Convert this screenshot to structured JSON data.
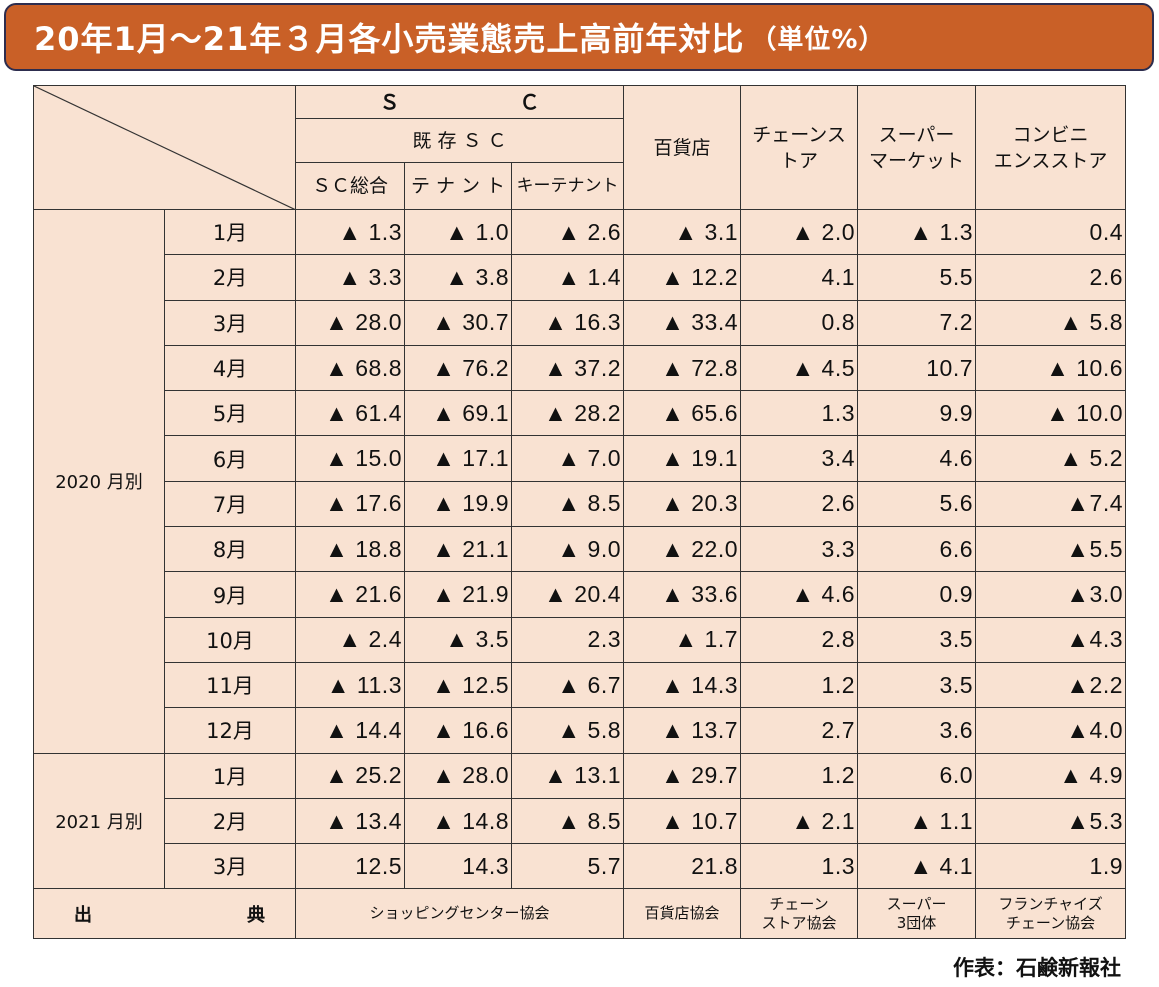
{
  "title": "20年1月～21年３月各小売業態売上高前年対比",
  "title_unit": "（単位%）",
  "header": {
    "sc": "Ｓ　　　　　　Ｃ",
    "existing_sc": "既 存 Ｓ Ｃ",
    "sc_total": "ＳＣ総合",
    "tenant": "テ ナ ン ト",
    "key_tenant": "キーテナント",
    "department_store": "百貨店",
    "chain_store": [
      "チェーンス",
      "トア"
    ],
    "supermarket": [
      "スーパー",
      "マーケット"
    ],
    "convenience": [
      "コンビニ",
      "エンスストア"
    ]
  },
  "groups": [
    {
      "label": "2020 月別",
      "rows": [
        {
          "month": "1月",
          "values": [
            "▲ 1.3",
            "▲ 1.0",
            "▲ 2.6",
            "▲ 3.1",
            "▲ 2.0",
            "▲ 1.3",
            "0.4"
          ]
        },
        {
          "month": "2月",
          "values": [
            "▲ 3.3",
            "▲ 3.8",
            "▲ 1.4",
            "▲ 12.2",
            "4.1",
            "5.5",
            "2.6"
          ]
        },
        {
          "month": "3月",
          "values": [
            "▲ 28.0",
            "▲ 30.7",
            "▲ 16.3",
            "▲ 33.4",
            "0.8",
            "7.2",
            "▲ 5.8"
          ]
        },
        {
          "month": "4月",
          "values": [
            "▲ 68.8",
            "▲ 76.2",
            "▲ 37.2",
            "▲ 72.8",
            "▲ 4.5",
            "10.7",
            "▲ 10.6"
          ]
        },
        {
          "month": "5月",
          "values": [
            "▲ 61.4",
            "▲ 69.1",
            "▲ 28.2",
            "▲ 65.6",
            "1.3",
            "9.9",
            "▲ 10.0"
          ]
        },
        {
          "month": "6月",
          "values": [
            "▲ 15.0",
            "▲ 17.1",
            "▲ 7.0",
            "▲ 19.1",
            "3.4",
            "4.6",
            "▲ 5.2"
          ]
        },
        {
          "month": "7月",
          "values": [
            "▲ 17.6",
            "▲ 19.9",
            "▲ 8.5",
            "▲ 20.3",
            "2.6",
            "5.6",
            "▲7.4"
          ]
        },
        {
          "month": "8月",
          "values": [
            "▲ 18.8",
            "▲ 21.1",
            "▲ 9.0",
            "▲ 22.0",
            "3.3",
            "6.6",
            "▲5.5"
          ]
        },
        {
          "month": "9月",
          "values": [
            "▲ 21.6",
            "▲ 21.9",
            "▲ 20.4",
            "▲ 33.6",
            "▲ 4.6",
            "0.9",
            "▲3.0"
          ]
        },
        {
          "month": "10月",
          "values": [
            "▲ 2.4",
            "▲ 3.5",
            "2.3",
            "▲ 1.7",
            "2.8",
            "3.5",
            "▲4.3"
          ]
        },
        {
          "month": "11月",
          "values": [
            "▲ 11.3",
            "▲ 12.5",
            "▲ 6.7",
            "▲ 14.3",
            "1.2",
            "3.5",
            "▲2.2"
          ]
        },
        {
          "month": "12月",
          "values": [
            "▲ 14.4",
            "▲ 16.6",
            "▲ 5.8",
            "▲ 13.7",
            "2.7",
            "3.6",
            "▲4.0"
          ]
        }
      ]
    },
    {
      "label": "2021 月別",
      "rows": [
        {
          "month": "1月",
          "values": [
            "▲ 25.2",
            "▲ 28.0",
            "▲ 13.1",
            "▲ 29.7",
            "1.2",
            "6.0",
            "▲ 4.9"
          ]
        },
        {
          "month": "2月",
          "values": [
            "▲ 13.4",
            "▲ 14.8",
            "▲ 8.5",
            "▲ 10.7",
            "▲ 2.1",
            "▲ 1.1",
            "▲5.3"
          ]
        },
        {
          "month": "3月",
          "values": [
            "12.5",
            "14.3",
            "5.7",
            "21.8",
            "1.3",
            "▲ 4.1",
            "1.9"
          ]
        }
      ]
    }
  ],
  "source": {
    "label_left": "出",
    "label_right": "典",
    "sc": "ショッピングセンター協会",
    "department_store": "百貨店協会",
    "chain_store": [
      "チェーン",
      "ストア協会"
    ],
    "supermarket": [
      "スーパー",
      "3団体"
    ],
    "convenience": [
      "フランチャイズ",
      "チェーン協会"
    ]
  },
  "credit": "作表：石鹸新報社",
  "colors": {
    "title_bg": "#c96027",
    "table_bg": "#f9e2d2"
  }
}
